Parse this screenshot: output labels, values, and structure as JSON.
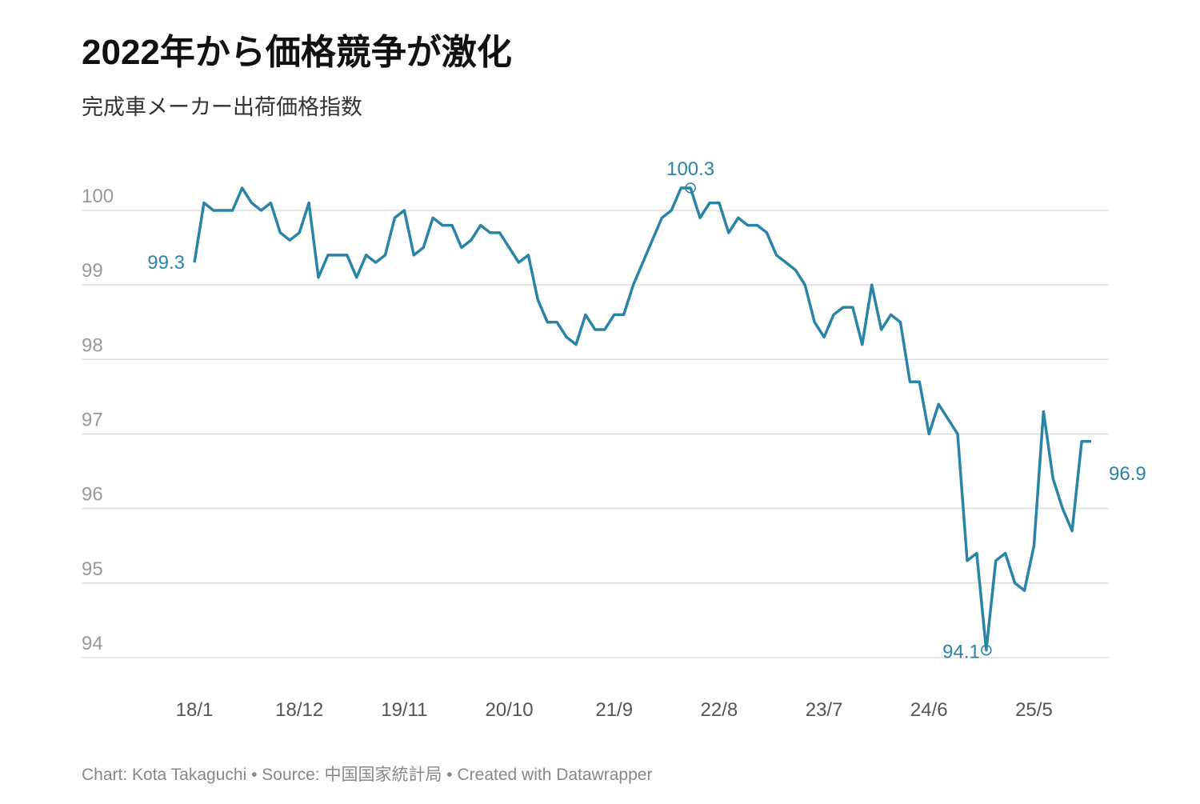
{
  "chart_data": {
    "type": "line",
    "title": "2022年から価格競争が激化",
    "subtitle": "完成車メーカー出荷価格指数",
    "footer": "Chart: Kota Takaguchi • Source: 中国国家統計局 • Created with Datawrapper",
    "categories": [
      "18/1",
      null,
      null,
      null,
      null,
      null,
      null,
      null,
      null,
      null,
      null,
      "18/12",
      null,
      null,
      null,
      null,
      null,
      null,
      null,
      null,
      null,
      null,
      "19/11",
      null,
      null,
      null,
      null,
      null,
      null,
      null,
      null,
      null,
      null,
      "20/10",
      null,
      null,
      null,
      null,
      null,
      null,
      null,
      null,
      null,
      null,
      "21/9",
      null,
      null,
      null,
      null,
      null,
      null,
      null,
      null,
      null,
      null,
      "22/8",
      null,
      null,
      null,
      null,
      null,
      null,
      null,
      null,
      null,
      null,
      "23/7",
      null,
      null,
      null,
      null,
      null,
      null,
      null,
      null,
      null,
      null,
      "24/6",
      null,
      null,
      null,
      null,
      null,
      null,
      null,
      null,
      null,
      null,
      "25/5",
      null,
      null,
      null,
      null,
      null,
      null
    ],
    "series": [
      {
        "color": "#2a84a6",
        "values": [
          99.3,
          100.1,
          100.0,
          100.0,
          100.0,
          100.3,
          100.1,
          100.0,
          100.1,
          99.7,
          99.6,
          99.7,
          100.1,
          99.1,
          99.4,
          99.4,
          99.4,
          99.1,
          99.4,
          99.3,
          99.4,
          99.9,
          100.0,
          99.4,
          99.5,
          99.9,
          99.8,
          99.8,
          99.5,
          99.6,
          99.8,
          99.7,
          99.7,
          99.5,
          99.3,
          99.4,
          98.8,
          98.5,
          98.5,
          98.3,
          98.2,
          98.6,
          98.4,
          98.4,
          98.6,
          98.6,
          99.0,
          99.3,
          99.6,
          99.9,
          100.0,
          100.3,
          100.3,
          99.9,
          100.1,
          100.1,
          99.7,
          99.9,
          99.8,
          99.8,
          99.7,
          99.4,
          99.3,
          99.2,
          99.0,
          98.5,
          98.3,
          98.6,
          98.7,
          98.7,
          98.2,
          99.0,
          98.4,
          98.6,
          98.5,
          97.7,
          97.7,
          97.0,
          97.4,
          97.2,
          97.0,
          95.3,
          95.4,
          94.1,
          95.3,
          95.4,
          95.0,
          94.9,
          95.5,
          97.3,
          96.4,
          96.0,
          95.7,
          96.9,
          96.9
        ]
      }
    ],
    "labeled_points": [
      0,
      52,
      83,
      94
    ],
    "circled_points": [
      52,
      83
    ],
    "ylim": [
      94,
      100.3
    ],
    "yticks": [
      94,
      95,
      96,
      97,
      98,
      99,
      100
    ],
    "grid": true
  }
}
